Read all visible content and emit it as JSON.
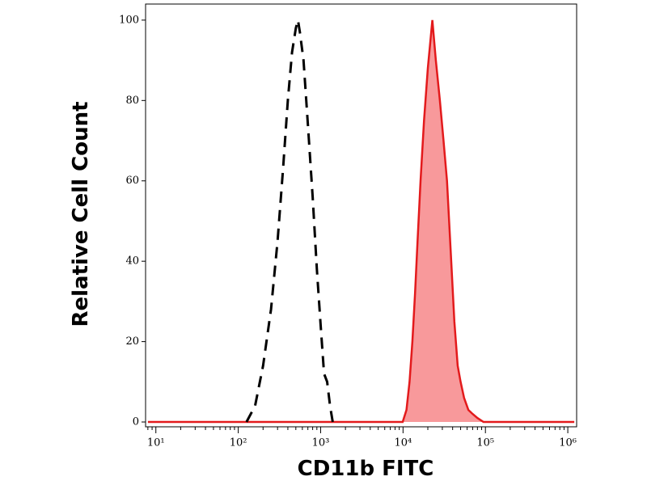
{
  "chart_data": {
    "type": "histogram-overlay",
    "x_label": "CD11b FITC",
    "y_label": "Relative Cell Count",
    "x_log": true,
    "xlim": [
      7.5,
      1280000
    ],
    "ylim": [
      -1.2,
      104
    ],
    "xticks": [
      {
        "value": 10,
        "label": "10¹"
      },
      {
        "value": 100,
        "label": "10²"
      },
      {
        "value": 1000,
        "label": "10³"
      },
      {
        "value": 10000,
        "label": "10⁴"
      },
      {
        "value": 100000,
        "label": "10⁵"
      },
      {
        "value": 1000000,
        "label": "10⁶"
      }
    ],
    "yticks": [
      0,
      20,
      40,
      60,
      80,
      100
    ],
    "series": [
      {
        "color": "#e31a1c",
        "fill": "#f8999b",
        "dashed": false,
        "x": [
          8,
          9900,
          11000,
          12000,
          13000,
          14000,
          15000,
          16300,
          18000,
          20000,
          22700,
          25000,
          28000,
          31000,
          34200,
          38000,
          42000,
          46000,
          50000,
          55000,
          62000,
          70000,
          80000,
          94600,
          1200000
        ],
        "values": [
          0,
          0,
          3,
          10,
          20,
          32,
          45,
          60,
          75,
          88,
          100,
          90,
          80,
          70,
          60,
          42,
          25,
          14,
          10,
          6,
          3,
          2,
          1,
          0,
          0
        ]
      },
      {
        "color": "#000000",
        "dashed": true,
        "x": [
          126,
          160,
          200,
          250,
          300,
          350,
          400,
          450,
          500,
          530,
          560,
          620,
          700,
          800,
          900,
          1000,
          1100,
          1200,
          1300,
          1400
        ],
        "values": [
          0,
          4,
          14,
          28,
          45,
          63,
          80,
          92,
          98,
          100,
          97,
          90,
          74,
          56,
          38,
          24,
          12,
          10,
          4,
          0
        ]
      }
    ]
  }
}
